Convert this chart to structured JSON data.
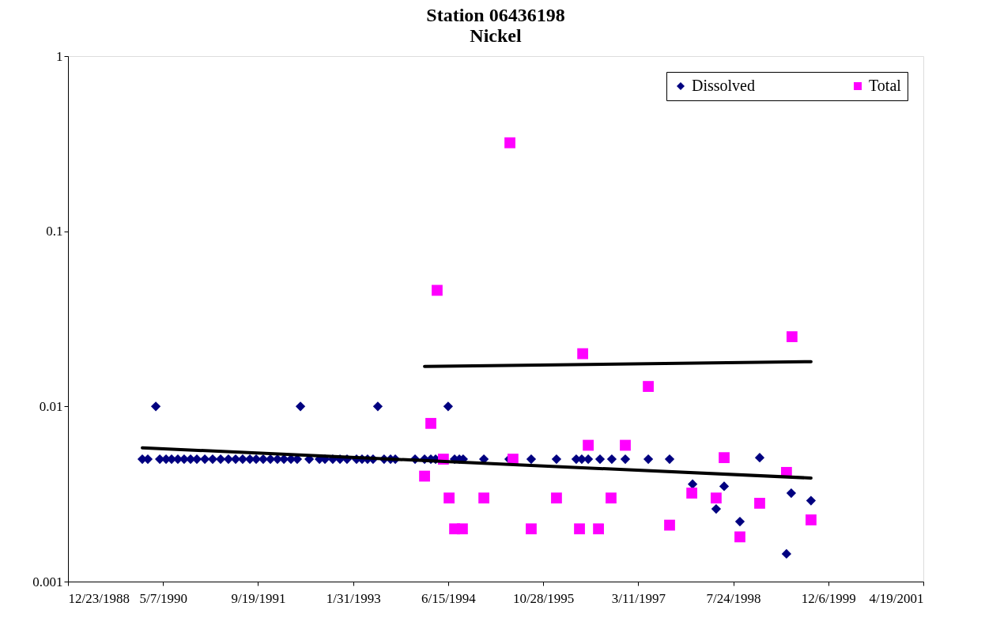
{
  "chart_data": {
    "type": "scatter",
    "title": "Station 06436198",
    "subtitle": "Nickel",
    "log": "y",
    "grid": false,
    "legend": "top right",
    "xlim": [
      "1988-12-23",
      "2001-04-19"
    ],
    "xticks": [
      {
        "value": "1988-12-23",
        "label": "12/23/1988"
      },
      {
        "value": "1990-05-07",
        "label": "5/7/1990"
      },
      {
        "value": "1991-09-19",
        "label": "9/19/1991"
      },
      {
        "value": "1993-01-31",
        "label": "1/31/1993"
      },
      {
        "value": "1994-06-15",
        "label": "6/15/1994"
      },
      {
        "value": "1995-10-28",
        "label": "10/28/1995"
      },
      {
        "value": "1997-03-11",
        "label": "3/11/1997"
      },
      {
        "value": "1998-07-24",
        "label": "7/24/1998"
      },
      {
        "value": "1999-12-06",
        "label": "12/6/1999"
      },
      {
        "value": "2001-04-19",
        "label": "4/19/2001"
      }
    ],
    "ylim": [
      0.001,
      1
    ],
    "yticks": [
      0.001,
      0.01,
      0.1,
      1
    ],
    "series": [
      {
        "name": "Dissolved",
        "marker": "diamond",
        "color": "#000080",
        "x": [
          "1990-01-18",
          "1990-02-16",
          "1990-03-30",
          "1990-04-20",
          "1990-05-23",
          "1990-06-21",
          "1990-07-24",
          "1990-08-26",
          "1990-09-29",
          "1990-11-01",
          "1990-12-13",
          "1991-01-23",
          "1991-03-06",
          "1991-04-16",
          "1991-05-24",
          "1991-06-30",
          "1991-08-07",
          "1991-09-09",
          "1991-10-16",
          "1991-11-23",
          "1991-12-30",
          "1992-02-02",
          "1992-03-10",
          "1992-04-12",
          "1992-04-29",
          "1992-06-14",
          "1992-08-07",
          "1992-09-05",
          "1992-10-16",
          "1992-11-23",
          "1992-12-30",
          "1993-02-18",
          "1993-03-19",
          "1993-04-17",
          "1993-05-16",
          "1993-06-10",
          "1993-07-13",
          "1993-08-16",
          "1993-09-10",
          "1993-12-23",
          "1994-02-11",
          "1994-03-16",
          "1994-04-10",
          "1994-06-15",
          "1994-07-19",
          "1994-08-13",
          "1994-09-02",
          "1994-12-20",
          "1995-05-02",
          "1995-08-26",
          "1996-01-06",
          "1996-04-19",
          "1996-05-18",
          "1996-06-21",
          "1996-08-22",
          "1996-10-23",
          "1997-01-02",
          "1997-05-03",
          "1997-08-23",
          "1997-12-22",
          "1998-04-25",
          "1998-06-06",
          "1998-08-28",
          "1998-12-10",
          "1999-04-30",
          "1999-05-25",
          "1999-09-06"
        ],
        "values": [
          0.005,
          0.005,
          0.01,
          0.005,
          0.005,
          0.005,
          0.005,
          0.005,
          0.005,
          0.005,
          0.005,
          0.005,
          0.005,
          0.005,
          0.005,
          0.005,
          0.005,
          0.005,
          0.005,
          0.005,
          0.005,
          0.005,
          0.005,
          0.005,
          0.01,
          0.005,
          0.005,
          0.005,
          0.005,
          0.005,
          0.005,
          0.005,
          0.005,
          0.005,
          0.005,
          0.01,
          0.005,
          0.005,
          0.005,
          0.005,
          0.005,
          0.005,
          0.005,
          0.01,
          0.005,
          0.005,
          0.005,
          0.005,
          0.005,
          0.005,
          0.005,
          0.005,
          0.005,
          0.005,
          0.005,
          0.005,
          0.005,
          0.005,
          0.005,
          0.0036,
          0.0026,
          0.0035,
          0.0022,
          0.0051,
          0.00144,
          0.0032,
          0.0029
        ]
      },
      {
        "name": "Total",
        "marker": "square",
        "color": "#ff00ff",
        "x": [
          "1994-02-11",
          "1994-03-16",
          "1994-04-18",
          "1994-05-21",
          "1994-06-20",
          "1994-07-19",
          "1994-08-29",
          "1994-12-20",
          "1995-05-06",
          "1995-05-22",
          "1995-08-26",
          "1996-01-06",
          "1996-05-06",
          "1996-05-23",
          "1996-06-21",
          "1996-08-14",
          "1996-10-19",
          "1997-01-02",
          "1997-05-03",
          "1997-08-23",
          "1997-12-18",
          "1998-04-25",
          "1998-06-06",
          "1998-08-28",
          "1998-12-10",
          "1999-04-30",
          "1999-05-29",
          "1999-09-06"
        ],
        "values": [
          0.004,
          0.008,
          0.046,
          0.005,
          0.003,
          0.002,
          0.002,
          0.003,
          0.32,
          0.005,
          0.002,
          0.003,
          0.002,
          0.02,
          0.006,
          0.002,
          0.003,
          0.006,
          0.013,
          0.0021,
          0.0032,
          0.003,
          0.0051,
          0.0018,
          0.0028,
          0.0042,
          0.025,
          0.00225
        ]
      },
      {
        "type": "line",
        "color": "#000000",
        "x": [
          "1990-01-18",
          "1999-09-06"
        ],
        "values": [
          0.0058,
          0.0039
        ]
      },
      {
        "type": "line",
        "color": "#000000",
        "x": [
          "1994-02-11",
          "1999-09-06"
        ],
        "values": [
          0.0169,
          0.018
        ]
      }
    ]
  }
}
